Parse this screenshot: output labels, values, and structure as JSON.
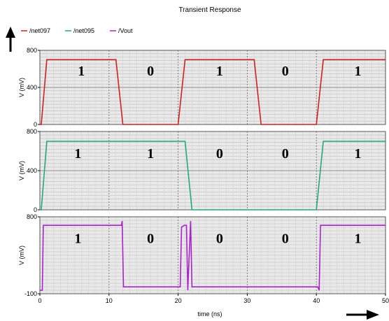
{
  "chart_data": {
    "type": "line",
    "title": "Transient Response",
    "xlabel": "time (ns)",
    "xlim": [
      0,
      50
    ],
    "x_ticks": [
      "0",
      "10",
      "20",
      "30",
      "40",
      "50"
    ],
    "legend": [
      {
        "name": "/net097",
        "color": "#cc2222"
      },
      {
        "name": "/net095",
        "color": "#22aa77"
      },
      {
        "name": "/Vout",
        "color": "#aa22cc"
      }
    ],
    "legend_placement": "top-left",
    "grid": true,
    "panels": [
      {
        "series": "/net097",
        "color": "#cc2222",
        "ylabel": "V (mV)",
        "ylim": [
          0,
          800
        ],
        "y_ticks": [
          "0",
          "400",
          "800"
        ],
        "x": [
          0,
          0.2,
          1,
          11,
          12,
          20,
          21,
          31,
          32,
          40,
          41,
          50
        ],
        "y": [
          0,
          0,
          700,
          700,
          0,
          0,
          700,
          700,
          0,
          0,
          700,
          700
        ],
        "bit_labels": [
          {
            "text": "1",
            "x": 6
          },
          {
            "text": "0",
            "x": 16
          },
          {
            "text": "1",
            "x": 26
          },
          {
            "text": "0",
            "x": 35.5
          },
          {
            "text": "1",
            "x": 46
          }
        ]
      },
      {
        "series": "/net095",
        "color": "#22aa77",
        "ylabel": "V (mV)",
        "ylim": [
          0,
          800
        ],
        "y_ticks": [
          "0",
          "400",
          "800"
        ],
        "x": [
          0,
          0.2,
          1,
          21,
          22,
          40,
          41,
          50
        ],
        "y": [
          0,
          0,
          700,
          700,
          0,
          0,
          700,
          700
        ],
        "bit_labels": [
          {
            "text": "1",
            "x": 5.5
          },
          {
            "text": "1",
            "x": 16
          },
          {
            "text": "0",
            "x": 26
          },
          {
            "text": "0",
            "x": 35.5
          },
          {
            "text": "1",
            "x": 46
          }
        ]
      },
      {
        "series": "/Vout",
        "color": "#aa22cc",
        "ylabel": "V (mV)",
        "ylim": [
          -100,
          800
        ],
        "y_ticks": [
          "-100",
          "800"
        ],
        "x": [
          0,
          0.35,
          0.5,
          0.65,
          11.8,
          11.9,
          12.1,
          20.3,
          20.5,
          20.9,
          21.2,
          21.4,
          21.8,
          22.0,
          40.2,
          40.4,
          40.6,
          50
        ],
        "y": [
          -60,
          -60,
          700,
          700,
          700,
          750,
          -20,
          -20,
          680,
          700,
          700,
          -60,
          750,
          -20,
          -20,
          -60,
          700,
          700
        ],
        "bit_labels": [
          {
            "text": "1",
            "x": 5.5
          },
          {
            "text": "0",
            "x": 16
          },
          {
            "text": "0",
            "x": 26
          },
          {
            "text": "0",
            "x": 35.5
          },
          {
            "text": "1",
            "x": 46
          }
        ]
      }
    ]
  }
}
